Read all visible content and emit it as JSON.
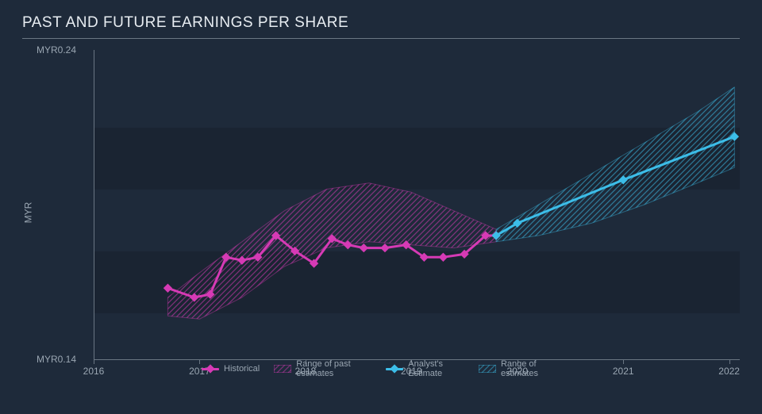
{
  "title": "PAST AND FUTURE EARNINGS PER SHARE",
  "y_axis_label": "MYR",
  "colors": {
    "background": "#1e2a3a",
    "panel_dark": "#1a2432",
    "text": "#b8c4d0",
    "text_muted": "#9aa6b2",
    "axis": "#6a7683",
    "historical": "#d63ab5",
    "historical_fill": "#d63ab5",
    "estimate": "#3cbde8",
    "estimate_fill": "#3cbde8"
  },
  "chart": {
    "type": "line-with-range",
    "xlim": [
      2016,
      2022.1
    ],
    "ylim": [
      0.14,
      0.24
    ],
    "x_ticks": [
      2016,
      2017,
      2018,
      2019,
      2020,
      2021,
      2022
    ],
    "y_ticks": [
      {
        "v": 0.14,
        "label": "MYR0.14"
      },
      {
        "v": 0.24,
        "label": "MYR0.24"
      }
    ],
    "grid_bands_y": [
      [
        0.155,
        0.175
      ],
      [
        0.195,
        0.215
      ]
    ],
    "line_width": 3,
    "marker": "diamond",
    "marker_size": 8,
    "historical": {
      "points": [
        [
          2016.7,
          0.163
        ],
        [
          2016.95,
          0.16
        ],
        [
          2017.1,
          0.161
        ],
        [
          2017.25,
          0.173
        ],
        [
          2017.4,
          0.172
        ],
        [
          2017.55,
          0.173
        ],
        [
          2017.72,
          0.18
        ],
        [
          2017.9,
          0.175
        ],
        [
          2018.08,
          0.171
        ],
        [
          2018.25,
          0.179
        ],
        [
          2018.4,
          0.177
        ],
        [
          2018.55,
          0.176
        ],
        [
          2018.75,
          0.176
        ],
        [
          2018.95,
          0.177
        ],
        [
          2019.12,
          0.173
        ],
        [
          2019.3,
          0.173
        ],
        [
          2019.5,
          0.174
        ],
        [
          2019.7,
          0.18
        ],
        [
          2019.8,
          0.18
        ]
      ],
      "range": [
        {
          "x": 2016.7,
          "lo": 0.154,
          "hi": 0.16
        },
        {
          "x": 2017.0,
          "lo": 0.153,
          "hi": 0.168
        },
        {
          "x": 2017.4,
          "lo": 0.16,
          "hi": 0.178
        },
        {
          "x": 2017.8,
          "lo": 0.17,
          "hi": 0.188
        },
        {
          "x": 2018.2,
          "lo": 0.176,
          "hi": 0.195
        },
        {
          "x": 2018.6,
          "lo": 0.178,
          "hi": 0.197
        },
        {
          "x": 2019.0,
          "lo": 0.177,
          "hi": 0.194
        },
        {
          "x": 2019.4,
          "lo": 0.176,
          "hi": 0.188
        },
        {
          "x": 2019.8,
          "lo": 0.178,
          "hi": 0.182
        }
      ]
    },
    "estimate": {
      "points": [
        [
          2019.8,
          0.18
        ],
        [
          2020.0,
          0.184
        ],
        [
          2021.0,
          0.198
        ],
        [
          2022.05,
          0.212
        ]
      ],
      "range": [
        {
          "x": 2019.8,
          "lo": 0.178,
          "hi": 0.182
        },
        {
          "x": 2020.2,
          "lo": 0.18,
          "hi": 0.19
        },
        {
          "x": 2020.7,
          "lo": 0.184,
          "hi": 0.2
        },
        {
          "x": 2021.2,
          "lo": 0.19,
          "hi": 0.21
        },
        {
          "x": 2021.7,
          "lo": 0.197,
          "hi": 0.22
        },
        {
          "x": 2022.05,
          "lo": 0.202,
          "hi": 0.228
        }
      ]
    }
  },
  "legend": {
    "historical": "Historical",
    "past_range": "Range of past estimates",
    "estimate": "Analyst's Estimate",
    "future_range": "Range of estimates"
  }
}
